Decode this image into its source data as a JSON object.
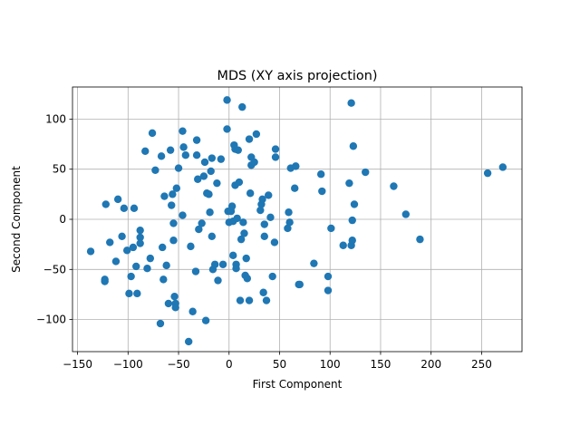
{
  "chart_data": {
    "type": "scatter",
    "title": "MDS (XY axis projection)",
    "xlabel": "First Component",
    "ylabel": "Second Component",
    "xlim": [
      -155,
      290
    ],
    "ylim": [
      -132,
      132
    ],
    "xticks": [
      -150,
      -100,
      -50,
      0,
      50,
      100,
      150,
      200,
      250
    ],
    "yticks": [
      -100,
      -50,
      0,
      50,
      100
    ],
    "grid": true,
    "color": "#1f77b4",
    "points": [
      [
        -137,
        -32
      ],
      [
        -123,
        -60
      ],
      [
        -123,
        -62
      ],
      [
        -122,
        15
      ],
      [
        -118,
        -23
      ],
      [
        -112,
        -42
      ],
      [
        -110,
        20
      ],
      [
        -106,
        -17
      ],
      [
        -104,
        11
      ],
      [
        -101,
        -31
      ],
      [
        -99,
        -74
      ],
      [
        -97,
        -57
      ],
      [
        -95,
        -28
      ],
      [
        -94,
        11
      ],
      [
        -92,
        -47
      ],
      [
        -91,
        -74
      ],
      [
        -88,
        -11
      ],
      [
        -88,
        -18
      ],
      [
        -88,
        -24
      ],
      [
        -83,
        68
      ],
      [
        -81,
        -49
      ],
      [
        -78,
        -39
      ],
      [
        -76,
        86
      ],
      [
        -73,
        49
      ],
      [
        -68,
        -104
      ],
      [
        -67,
        63
      ],
      [
        -66,
        -28
      ],
      [
        -65,
        -60
      ],
      [
        -64,
        23
      ],
      [
        -62,
        -46
      ],
      [
        -60,
        -84
      ],
      [
        -58,
        69
      ],
      [
        -57,
        14
      ],
      [
        -56,
        25
      ],
      [
        -55,
        -4
      ],
      [
        -55,
        -21
      ],
      [
        -54,
        -77
      ],
      [
        -53,
        -84
      ],
      [
        -53,
        -88
      ],
      [
        -52,
        31
      ],
      [
        -50,
        51
      ],
      [
        -46,
        88
      ],
      [
        -46,
        4
      ],
      [
        -45,
        72
      ],
      [
        -43,
        64
      ],
      [
        -40,
        -122
      ],
      [
        -38,
        -27
      ],
      [
        -36,
        -92
      ],
      [
        -33,
        -52
      ],
      [
        -32,
        79
      ],
      [
        -32,
        64
      ],
      [
        -31,
        40
      ],
      [
        -30,
        -10
      ],
      [
        -27,
        -4
      ],
      [
        -25,
        43
      ],
      [
        -24,
        57
      ],
      [
        -23,
        -101
      ],
      [
        -22,
        26
      ],
      [
        -20,
        25
      ],
      [
        -19,
        7
      ],
      [
        -18,
        48
      ],
      [
        -17,
        61
      ],
      [
        -17,
        -17
      ],
      [
        -16,
        -50
      ],
      [
        -14,
        -45
      ],
      [
        -12,
        36
      ],
      [
        -11,
        -61
      ],
      [
        -8,
        60
      ],
      [
        -6,
        -45
      ],
      [
        -2,
        119
      ],
      [
        -2,
        90
      ],
      [
        -1,
        8
      ],
      [
        0,
        -3
      ],
      [
        2,
        8
      ],
      [
        3,
        13
      ],
      [
        4,
        -36
      ],
      [
        4,
        -2
      ],
      [
        5,
        74
      ],
      [
        6,
        70
      ],
      [
        6,
        34
      ],
      [
        7,
        -45
      ],
      [
        7,
        -49
      ],
      [
        8,
        1
      ],
      [
        9,
        69
      ],
      [
        10,
        37
      ],
      [
        11,
        -81
      ],
      [
        12,
        -20
      ],
      [
        13,
        112
      ],
      [
        14,
        -3
      ],
      [
        15,
        -14
      ],
      [
        16,
        -56
      ],
      [
        17,
        -39
      ],
      [
        18,
        -59
      ],
      [
        20,
        80
      ],
      [
        20,
        -81
      ],
      [
        21,
        26
      ],
      [
        22,
        54
      ],
      [
        22,
        62
      ],
      [
        25,
        57
      ],
      [
        27,
        85
      ],
      [
        31,
        9
      ],
      [
        32,
        15
      ],
      [
        33,
        20
      ],
      [
        34,
        -73
      ],
      [
        35,
        -5
      ],
      [
        35,
        -17
      ],
      [
        37,
        -81
      ],
      [
        39,
        24
      ],
      [
        41,
        2
      ],
      [
        43,
        -57
      ],
      [
        45,
        -23
      ],
      [
        46,
        62
      ],
      [
        46,
        70
      ],
      [
        58,
        -9
      ],
      [
        59,
        7
      ],
      [
        60,
        -3
      ],
      [
        61,
        51
      ],
      [
        65,
        31
      ],
      [
        66,
        53
      ],
      [
        69,
        -65
      ],
      [
        70,
        -65
      ],
      [
        84,
        -44
      ],
      [
        91,
        45
      ],
      [
        92,
        28
      ],
      [
        98,
        -57
      ],
      [
        98,
        -71
      ],
      [
        101,
        -9
      ],
      [
        113,
        -26
      ],
      [
        119,
        36
      ],
      [
        121,
        -26
      ],
      [
        121,
        116
      ],
      [
        122,
        -1
      ],
      [
        122,
        -21
      ],
      [
        123,
        73
      ],
      [
        124,
        15
      ],
      [
        135,
        47
      ],
      [
        163,
        33
      ],
      [
        175,
        5
      ],
      [
        189,
        -20
      ],
      [
        256,
        46
      ],
      [
        271,
        52
      ]
    ]
  }
}
